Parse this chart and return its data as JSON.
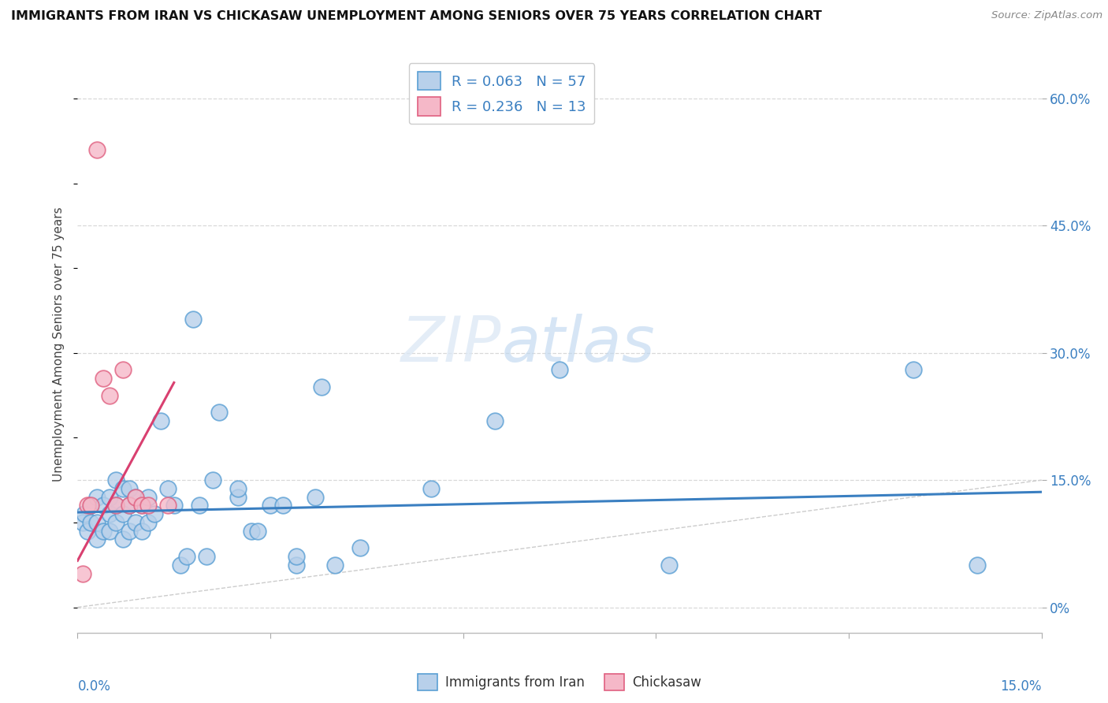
{
  "title": "IMMIGRANTS FROM IRAN VS CHICKASAW UNEMPLOYMENT AMONG SENIORS OVER 75 YEARS CORRELATION CHART",
  "source": "Source: ZipAtlas.com",
  "ylabel": "Unemployment Among Seniors over 75 years",
  "ylabel_right_ticks": [
    "0%",
    "15.0%",
    "30.0%",
    "45.0%",
    "60.0%"
  ],
  "ylabel_right_vals": [
    0.0,
    0.15,
    0.3,
    0.45,
    0.6
  ],
  "xlim": [
    0,
    0.15
  ],
  "ylim": [
    -0.03,
    0.65
  ],
  "legend1_R": "0.063",
  "legend1_N": "57",
  "legend2_R": "0.236",
  "legend2_N": "13",
  "blue_fill": "#b8d0ea",
  "pink_fill": "#f5b8c8",
  "blue_edge": "#5a9fd4",
  "pink_edge": "#e06080",
  "blue_trend": "#3a7fc1",
  "pink_trend": "#d94070",
  "diag_color": "#cccccc",
  "watermark_zip": "ZIP",
  "watermark_atlas": "atlas",
  "grid_color": "#d8d8d8",
  "blue_scatter_x": [
    0.0008,
    0.001,
    0.0015,
    0.002,
    0.002,
    0.003,
    0.003,
    0.003,
    0.004,
    0.004,
    0.005,
    0.005,
    0.005,
    0.006,
    0.006,
    0.006,
    0.007,
    0.007,
    0.007,
    0.008,
    0.008,
    0.008,
    0.009,
    0.009,
    0.01,
    0.01,
    0.011,
    0.011,
    0.012,
    0.013,
    0.014,
    0.015,
    0.016,
    0.017,
    0.018,
    0.019,
    0.02,
    0.021,
    0.022,
    0.025,
    0.025,
    0.027,
    0.028,
    0.03,
    0.032,
    0.034,
    0.034,
    0.037,
    0.038,
    0.04,
    0.044,
    0.055,
    0.065,
    0.075,
    0.092,
    0.13,
    0.14
  ],
  "blue_scatter_y": [
    0.1,
    0.11,
    0.09,
    0.1,
    0.12,
    0.08,
    0.1,
    0.13,
    0.09,
    0.12,
    0.09,
    0.11,
    0.13,
    0.1,
    0.12,
    0.15,
    0.08,
    0.11,
    0.14,
    0.09,
    0.12,
    0.14,
    0.1,
    0.13,
    0.09,
    0.12,
    0.1,
    0.13,
    0.11,
    0.22,
    0.14,
    0.12,
    0.05,
    0.06,
    0.34,
    0.12,
    0.06,
    0.15,
    0.23,
    0.13,
    0.14,
    0.09,
    0.09,
    0.12,
    0.12,
    0.05,
    0.06,
    0.13,
    0.26,
    0.05,
    0.07,
    0.14,
    0.22,
    0.28,
    0.05,
    0.28,
    0.05
  ],
  "pink_scatter_x": [
    0.0008,
    0.0015,
    0.002,
    0.003,
    0.004,
    0.005,
    0.006,
    0.007,
    0.008,
    0.009,
    0.01,
    0.011,
    0.014
  ],
  "pink_scatter_y": [
    0.04,
    0.12,
    0.12,
    0.54,
    0.27,
    0.25,
    0.12,
    0.28,
    0.12,
    0.13,
    0.12,
    0.12,
    0.12
  ],
  "blue_trend_x": [
    0.0,
    0.15
  ],
  "blue_trend_y": [
    0.112,
    0.136
  ],
  "pink_trend_x": [
    0.0,
    0.015
  ],
  "pink_trend_y": [
    0.055,
    0.265
  ],
  "bg_color": "#ffffff"
}
